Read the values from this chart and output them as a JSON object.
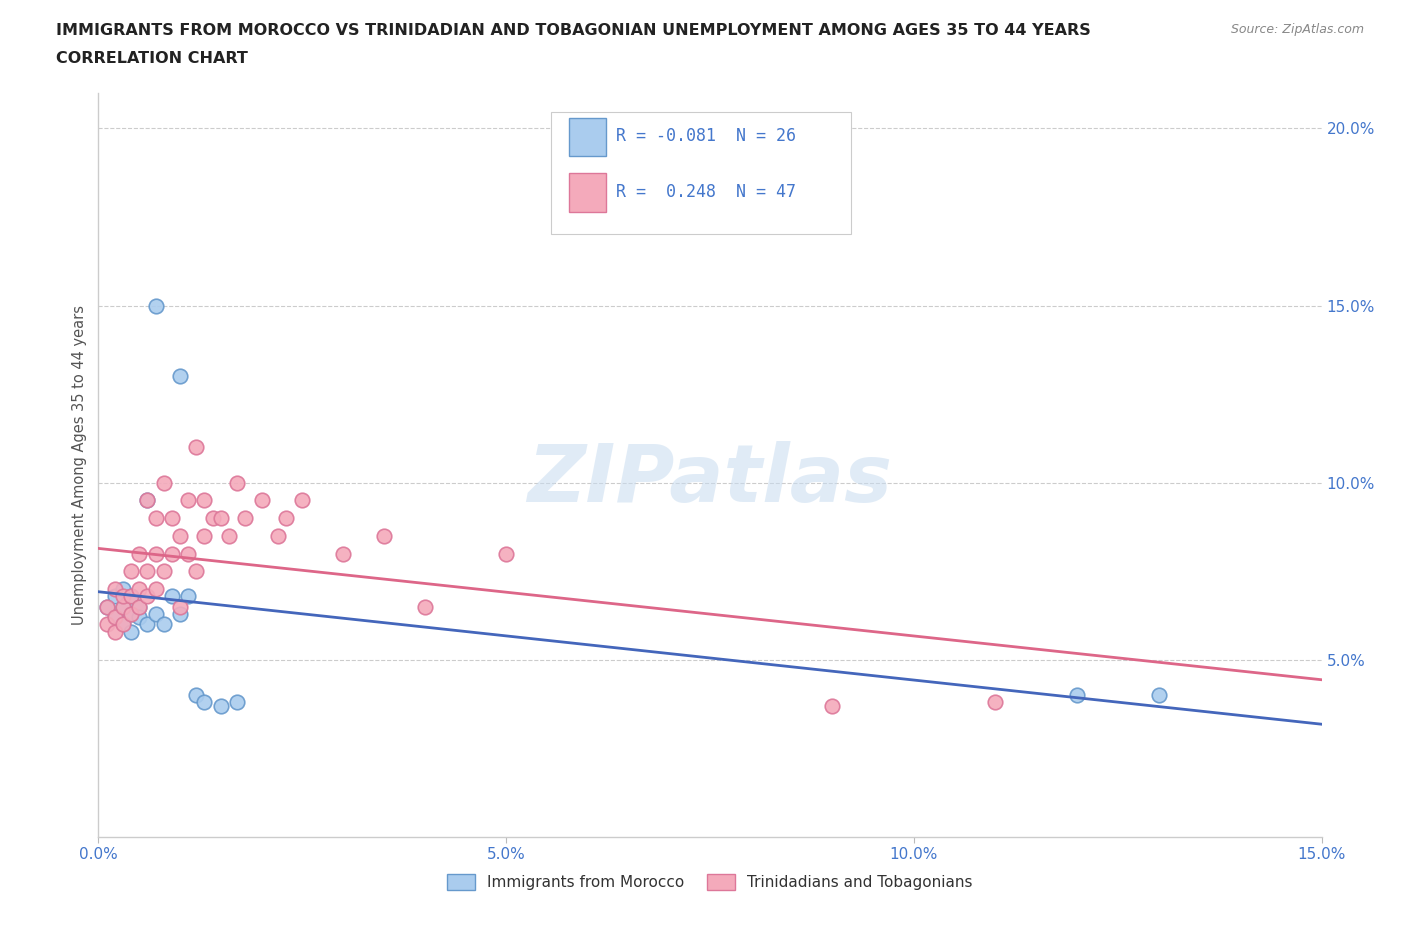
{
  "title_line1": "IMMIGRANTS FROM MOROCCO VS TRINIDADIAN AND TOBAGONIAN UNEMPLOYMENT AMONG AGES 35 TO 44 YEARS",
  "title_line2": "CORRELATION CHART",
  "source_text": "Source: ZipAtlas.com",
  "ylabel": "Unemployment Among Ages 35 to 44 years",
  "xlim": [
    0.0,
    0.15
  ],
  "ylim": [
    0.0,
    0.21
  ],
  "xticks": [
    0.0,
    0.05,
    0.1,
    0.15
  ],
  "xticklabels": [
    "0.0%",
    "5.0%",
    "10.0%",
    "15.0%"
  ],
  "yticks_right": [
    0.05,
    0.1,
    0.15,
    0.2
  ],
  "ytick_labels_right": [
    "5.0%",
    "10.0%",
    "15.0%",
    "20.0%"
  ],
  "grid_color": "#cccccc",
  "background_color": "#ffffff",
  "watermark_text": "ZIPatlas",
  "morocco_color": "#aaccee",
  "morocco_edge_color": "#6699cc",
  "trinidad_color": "#f4aabb",
  "trinidad_edge_color": "#dd7799",
  "morocco_R": -0.081,
  "morocco_N": 26,
  "trinidad_R": 0.248,
  "trinidad_N": 47,
  "morocco_line_color": "#4466bb",
  "trinidad_line_color": "#dd6688",
  "legend_label_morocco": "Immigrants from Morocco",
  "legend_label_trinidad": "Trinidadians and Tobagonians",
  "morocco_x": [
    0.001,
    0.002,
    0.002,
    0.003,
    0.003,
    0.003,
    0.004,
    0.004,
    0.004,
    0.005,
    0.005,
    0.006,
    0.006,
    0.007,
    0.007,
    0.008,
    0.009,
    0.01,
    0.01,
    0.011,
    0.012,
    0.013,
    0.015,
    0.017,
    0.12,
    0.13
  ],
  "morocco_y": [
    0.065,
    0.068,
    0.062,
    0.065,
    0.06,
    0.07,
    0.063,
    0.068,
    0.058,
    0.065,
    0.062,
    0.06,
    0.095,
    0.15,
    0.063,
    0.06,
    0.068,
    0.063,
    0.13,
    0.068,
    0.04,
    0.038,
    0.037,
    0.038,
    0.04,
    0.04
  ],
  "trinidad_x": [
    0.001,
    0.001,
    0.002,
    0.002,
    0.002,
    0.003,
    0.003,
    0.003,
    0.004,
    0.004,
    0.004,
    0.005,
    0.005,
    0.005,
    0.006,
    0.006,
    0.006,
    0.007,
    0.007,
    0.007,
    0.008,
    0.008,
    0.009,
    0.009,
    0.01,
    0.01,
    0.011,
    0.011,
    0.012,
    0.012,
    0.013,
    0.013,
    0.014,
    0.015,
    0.016,
    0.017,
    0.018,
    0.02,
    0.022,
    0.023,
    0.025,
    0.03,
    0.035,
    0.04,
    0.05,
    0.09,
    0.11
  ],
  "trinidad_y": [
    0.06,
    0.065,
    0.058,
    0.062,
    0.07,
    0.06,
    0.065,
    0.068,
    0.063,
    0.068,
    0.075,
    0.065,
    0.07,
    0.08,
    0.068,
    0.075,
    0.095,
    0.07,
    0.08,
    0.09,
    0.075,
    0.1,
    0.08,
    0.09,
    0.085,
    0.065,
    0.08,
    0.095,
    0.075,
    0.11,
    0.085,
    0.095,
    0.09,
    0.09,
    0.085,
    0.1,
    0.09,
    0.095,
    0.085,
    0.09,
    0.095,
    0.08,
    0.085,
    0.065,
    0.08,
    0.037,
    0.038
  ]
}
